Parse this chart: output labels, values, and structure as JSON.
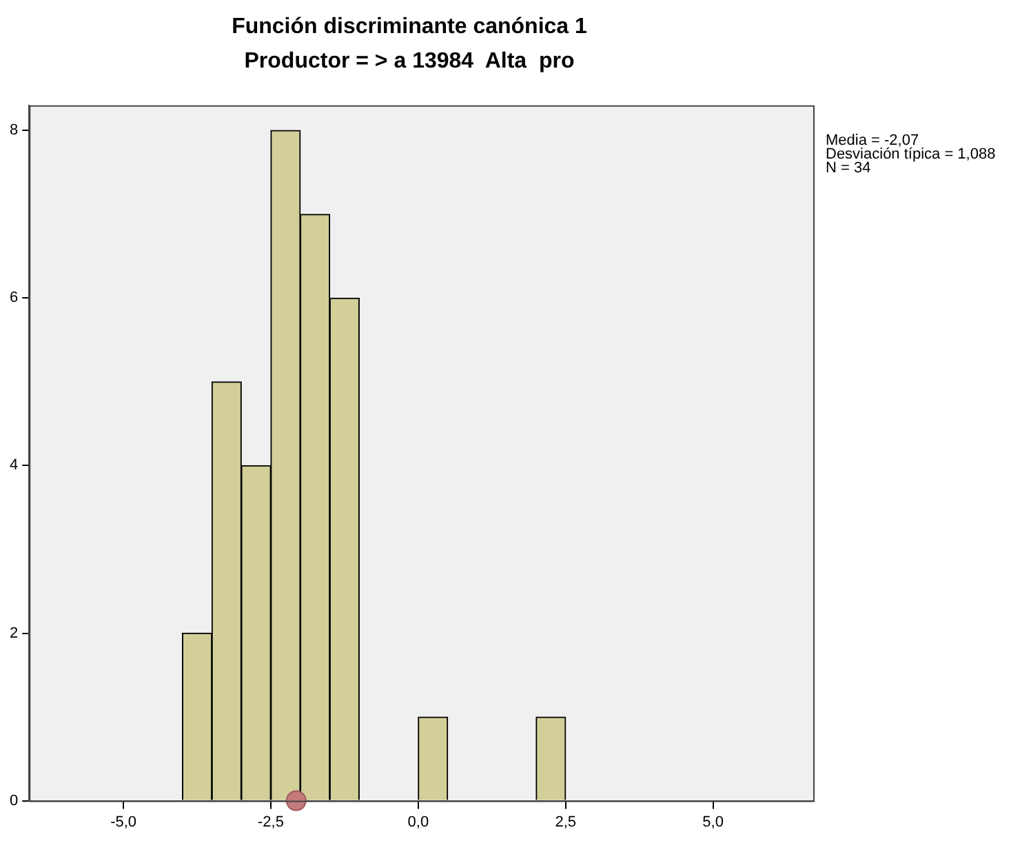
{
  "chart_data": {
    "type": "histogram",
    "title": "Función discriminante canónica 1",
    "subtitle": "Productor = > a 13984  Alta  pro",
    "bins": [
      -4,
      -3.5,
      -3,
      -2.5,
      -2,
      -1.5,
      -1,
      -0.5,
      0,
      0.5,
      1,
      1.5,
      2,
      2.5
    ],
    "values": [
      2,
      5,
      4,
      8,
      7,
      6,
      0,
      0,
      1,
      0,
      0,
      0,
      1
    ],
    "color": "#d3cf99",
    "series": [
      {
        "type": "scatter",
        "x": [
          -2.07
        ],
        "values": [
          0
        ],
        "color": "#c47a7a",
        "marker": "circle"
      }
    ],
    "xlim": [
      -6.6,
      6.7
    ],
    "xticks": [
      {
        "value": -5,
        "label": "-5,0"
      },
      {
        "value": -2.5,
        "label": "-2,5"
      },
      {
        "value": 0,
        "label": "0,0"
      },
      {
        "value": 2.5,
        "label": "2,5"
      },
      {
        "value": 5,
        "label": "5,0"
      }
    ],
    "ylim": [
      0,
      8.3
    ],
    "yticks": [
      0,
      2,
      4,
      6,
      8
    ],
    "grid": false,
    "legend": false,
    "annotations": [
      "Media = -2,07",
      "Desviación típica = 1,088",
      "N = 34"
    ]
  }
}
